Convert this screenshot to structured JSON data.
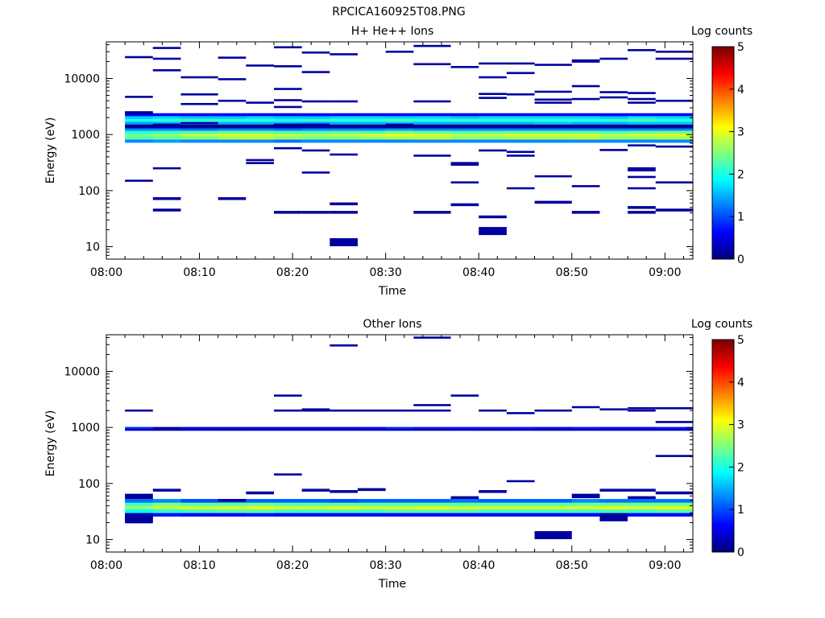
{
  "figure_title": "RPCICA160925T08.PNG",
  "chart_data": [
    {
      "type": "heatmap",
      "title": "H+ He++ Ions",
      "xlabel": "Time",
      "ylabel": "Energy (eV)",
      "x_ticks": [
        "08:00",
        "08:10",
        "08:20",
        "08:30",
        "08:40",
        "08:50",
        "09:00"
      ],
      "xlim": [
        "08:00",
        "09:03"
      ],
      "y_scale": "log",
      "y_ticks": [
        10,
        100,
        1000,
        10000
      ],
      "y_tick_labels": [
        "10",
        "100",
        "1000",
        "10000"
      ],
      "ylim": [
        6,
        45000
      ],
      "colorbar": {
        "title": "Log counts",
        "range": [
          0,
          5
        ],
        "ticks": [
          "0",
          "1",
          "2",
          "3",
          "4",
          "5"
        ],
        "colormap": "jet"
      },
      "time_bins": [
        "08:02",
        "08:05",
        "08:08",
        "08:12",
        "08:15",
        "08:18",
        "08:21",
        "08:24",
        "08:27",
        "08:30",
        "08:33",
        "08:37",
        "08:40",
        "08:43",
        "08:46",
        "08:50",
        "08:53",
        "08:56",
        "08:59",
        "09:03"
      ],
      "band_cells": [
        {
          "e_lo": 720,
          "e_hi": 820,
          "values": [
            1.3,
            1.4,
            1.3,
            1.3,
            1.3,
            1.2,
            1.3,
            1.3,
            1.3,
            1.3,
            1.3,
            1.3,
            1.3,
            1.3,
            1.3,
            1.3,
            1.3,
            1.3,
            1.3
          ]
        },
        {
          "e_lo": 820,
          "e_hi": 930,
          "values": [
            2.3,
            2.4,
            2.5,
            2.7,
            2.8,
            2.6,
            2.5,
            2.5,
            2.6,
            2.7,
            2.8,
            2.6,
            2.6,
            2.7,
            2.7,
            2.8,
            2.6,
            2.6,
            2.7
          ]
        },
        {
          "e_lo": 930,
          "e_hi": 1050,
          "values": [
            2.5,
            2.6,
            2.8,
            2.9,
            2.9,
            2.8,
            2.7,
            2.8,
            2.9,
            3.0,
            2.9,
            2.8,
            2.8,
            2.9,
            2.9,
            2.9,
            2.8,
            2.9,
            2.9
          ]
        },
        {
          "e_lo": 1050,
          "e_hi": 1180,
          "values": [
            2.0,
            2.1,
            2.2,
            2.3,
            2.3,
            2.2,
            2.2,
            2.3,
            2.2,
            2.4,
            2.3,
            2.2,
            2.3,
            2.3,
            2.3,
            2.3,
            2.2,
            2.3,
            2.4
          ]
        },
        {
          "e_lo": 1180,
          "e_hi": 1300,
          "values": [
            1.3,
            1.3,
            1.2,
            1.3,
            1.3,
            1.2,
            1.3,
            1.3,
            1.3,
            1.4,
            1.3,
            1.3,
            1.3,
            1.3,
            1.3,
            1.3,
            1.3,
            1.3,
            1.3
          ]
        },
        {
          "e_lo": 1300,
          "e_hi": 1520,
          "values": [
            0.1,
            0.2,
            0.1,
            0.1,
            0.1,
            0.1,
            0.2,
            0.1,
            0.1,
            0.1,
            0.1,
            0.1,
            0.1,
            0.1,
            0.1,
            0.1,
            0.1,
            0.1,
            0.1
          ]
        },
        {
          "e_lo": 1520,
          "e_hi": 1700,
          "values": [
            1.4,
            1.5,
            1.4,
            1.5,
            1.5,
            1.5,
            1.4,
            1.5,
            1.5,
            1.6,
            1.5,
            1.5,
            1.5,
            1.5,
            1.6,
            1.5,
            1.5,
            1.6,
            1.6
          ]
        },
        {
          "e_lo": 1700,
          "e_hi": 1920,
          "values": [
            2.0,
            2.1,
            2.1,
            2.1,
            2.1,
            2.0,
            2.1,
            2.1,
            2.1,
            2.2,
            2.1,
            2.1,
            2.1,
            2.1,
            2.1,
            2.1,
            2.1,
            2.2,
            2.1
          ]
        },
        {
          "e_lo": 1920,
          "e_hi": 2150,
          "values": [
            1.6,
            1.7,
            1.6,
            1.6,
            1.7,
            1.6,
            1.6,
            1.7,
            1.7,
            1.7,
            1.7,
            1.6,
            1.7,
            1.7,
            1.7,
            1.7,
            1.6,
            1.8,
            1.7
          ]
        },
        {
          "e_lo": 2150,
          "e_hi": 2400,
          "values": [
            0.6,
            0.6,
            0.5,
            0.6,
            0.6,
            0.5,
            0.6,
            0.6,
            0.6,
            0.6,
            0.6,
            0.5,
            0.6,
            0.6,
            0.6,
            0.6,
            0.6,
            0.6,
            0.6
          ]
        }
      ],
      "scatter_cells": [
        {
          "t": 0,
          "e": 24000
        },
        {
          "t": 0,
          "e": 4700
        },
        {
          "t": 0,
          "e": 2500
        },
        {
          "t": 0,
          "e": 2400
        },
        {
          "t": 0,
          "e": 150
        },
        {
          "t": 1,
          "e": 35000
        },
        {
          "t": 1,
          "e": 22500
        },
        {
          "t": 1,
          "e": 14000
        },
        {
          "t": 1,
          "e": 1500
        },
        {
          "t": 1,
          "e": 250
        },
        {
          "t": 1,
          "e": 72
        },
        {
          "t": 1,
          "e": 45
        },
        {
          "t": 2,
          "e": 10500
        },
        {
          "t": 2,
          "e": 5200
        },
        {
          "t": 2,
          "e": 3500
        },
        {
          "t": 2,
          "e": 1600
        },
        {
          "t": 3,
          "e": 23500
        },
        {
          "t": 3,
          "e": 9700
        },
        {
          "t": 3,
          "e": 4000
        },
        {
          "t": 3,
          "e": 72
        },
        {
          "t": 4,
          "e": 17000
        },
        {
          "t": 4,
          "e": 3700
        },
        {
          "t": 4,
          "e": 350
        },
        {
          "t": 4,
          "e": 310
        },
        {
          "t": 5,
          "e": 36000
        },
        {
          "t": 5,
          "e": 16500
        },
        {
          "t": 5,
          "e": 6500
        },
        {
          "t": 5,
          "e": 4100
        },
        {
          "t": 5,
          "e": 3100
        },
        {
          "t": 5,
          "e": 1500
        },
        {
          "t": 5,
          "e": 570
        },
        {
          "t": 5,
          "e": 41
        },
        {
          "t": 6,
          "e": 29000
        },
        {
          "t": 6,
          "e": 13000
        },
        {
          "t": 6,
          "e": 3900
        },
        {
          "t": 6,
          "e": 1500
        },
        {
          "t": 6,
          "e": 520
        },
        {
          "t": 6,
          "e": 210
        },
        {
          "t": 6,
          "e": 41
        },
        {
          "t": 7,
          "e": 27000
        },
        {
          "t": 7,
          "e": 3900
        },
        {
          "t": 7,
          "e": 1400
        },
        {
          "t": 7,
          "e": 440
        },
        {
          "t": 7,
          "e": 58
        },
        {
          "t": 7,
          "e": 41
        },
        {
          "t": 7,
          "e": 12
        },
        {
          "t": 9,
          "e": 30000
        },
        {
          "t": 9,
          "e": 1500
        },
        {
          "t": 10,
          "e": 38000
        },
        {
          "t": 10,
          "e": 18000
        },
        {
          "t": 10,
          "e": 3900
        },
        {
          "t": 10,
          "e": 1400
        },
        {
          "t": 10,
          "e": 420
        },
        {
          "t": 10,
          "e": 41
        },
        {
          "t": 11,
          "e": 16000
        },
        {
          "t": 11,
          "e": 310
        },
        {
          "t": 11,
          "e": 290
        },
        {
          "t": 11,
          "e": 140
        },
        {
          "t": 11,
          "e": 56
        },
        {
          "t": 12,
          "e": 18500
        },
        {
          "t": 12,
          "e": 10500
        },
        {
          "t": 12,
          "e": 5300
        },
        {
          "t": 12,
          "e": 4500
        },
        {
          "t": 12,
          "e": 520
        },
        {
          "t": 12,
          "e": 34
        },
        {
          "t": 12,
          "e": 19
        },
        {
          "t": 13,
          "e": 18500
        },
        {
          "t": 13,
          "e": 12500
        },
        {
          "t": 13,
          "e": 5200
        },
        {
          "t": 13,
          "e": 490
        },
        {
          "t": 13,
          "e": 420
        },
        {
          "t": 13,
          "e": 110
        },
        {
          "t": 14,
          "e": 17500
        },
        {
          "t": 14,
          "e": 5800
        },
        {
          "t": 14,
          "e": 4200
        },
        {
          "t": 14,
          "e": 3700
        },
        {
          "t": 14,
          "e": 180
        },
        {
          "t": 14,
          "e": 62
        },
        {
          "t": 15,
          "e": 21000
        },
        {
          "t": 15,
          "e": 20000
        },
        {
          "t": 15,
          "e": 7300
        },
        {
          "t": 15,
          "e": 4300
        },
        {
          "t": 15,
          "e": 1400
        },
        {
          "t": 15,
          "e": 120
        },
        {
          "t": 15,
          "e": 41
        },
        {
          "t": 16,
          "e": 22500
        },
        {
          "t": 16,
          "e": 5700
        },
        {
          "t": 16,
          "e": 4600
        },
        {
          "t": 16,
          "e": 530
        },
        {
          "t": 17,
          "e": 32000
        },
        {
          "t": 17,
          "e": 5500
        },
        {
          "t": 17,
          "e": 4300
        },
        {
          "t": 17,
          "e": 3700
        },
        {
          "t": 17,
          "e": 640
        },
        {
          "t": 17,
          "e": 250
        },
        {
          "t": 17,
          "e": 230
        },
        {
          "t": 17,
          "e": 175
        },
        {
          "t": 17,
          "e": 110
        },
        {
          "t": 17,
          "e": 50
        },
        {
          "t": 17,
          "e": 41
        },
        {
          "t": 18,
          "e": 30000
        },
        {
          "t": 18,
          "e": 22500
        },
        {
          "t": 18,
          "e": 4000
        },
        {
          "t": 18,
          "e": 610
        },
        {
          "t": 18,
          "e": 140
        },
        {
          "t": 18,
          "e": 45
        }
      ]
    },
    {
      "type": "heatmap",
      "title": "Other Ions",
      "xlabel": "Time",
      "ylabel": "Energy (eV)",
      "x_ticks": [
        "08:00",
        "08:10",
        "08:20",
        "08:30",
        "08:40",
        "08:50",
        "09:00"
      ],
      "xlim": [
        "08:00",
        "09:03"
      ],
      "y_scale": "log",
      "y_ticks": [
        10,
        100,
        1000,
        10000
      ],
      "y_tick_labels": [
        "10",
        "100",
        "1000",
        "10000"
      ],
      "ylim": [
        6,
        45000
      ],
      "colorbar": {
        "title": "Log counts",
        "range": [
          0,
          5
        ],
        "ticks": [
          "0",
          "1",
          "2",
          "3",
          "4",
          "5"
        ],
        "colormap": "jet"
      },
      "time_bins": [
        "08:02",
        "08:05",
        "08:08",
        "08:12",
        "08:15",
        "08:18",
        "08:21",
        "08:24",
        "08:27",
        "08:30",
        "08:33",
        "08:37",
        "08:40",
        "08:43",
        "08:46",
        "08:50",
        "08:53",
        "08:56",
        "08:59",
        "09:03"
      ],
      "band_cells": [
        {
          "e_lo": 26,
          "e_hi": 30,
          "values": [
            0.7,
            0.7,
            0.6,
            0.6,
            0.7,
            0.6,
            0.6,
            0.6,
            0.6,
            0.6,
            0.6,
            0.6,
            0.6,
            0.6,
            0.6,
            0.6,
            0.6,
            0.6,
            0.6
          ]
        },
        {
          "e_lo": 30,
          "e_hi": 35,
          "values": [
            1.9,
            2.1,
            2.2,
            2.3,
            2.3,
            2.2,
            2.2,
            2.2,
            2.2,
            2.3,
            2.3,
            2.3,
            2.2,
            2.2,
            2.2,
            2.2,
            2.2,
            2.2,
            2.3
          ]
        },
        {
          "e_lo": 35,
          "e_hi": 40,
          "values": [
            2.6,
            2.8,
            2.9,
            2.9,
            3.0,
            2.9,
            2.9,
            3.0,
            2.9,
            2.9,
            3.0,
            2.9,
            2.9,
            2.9,
            2.9,
            2.9,
            3.0,
            2.9,
            3.0
          ]
        },
        {
          "e_lo": 40,
          "e_hi": 46,
          "values": [
            2.2,
            2.5,
            2.3,
            2.3,
            2.4,
            2.3,
            2.3,
            2.3,
            2.3,
            2.3,
            2.3,
            2.3,
            2.3,
            2.3,
            2.3,
            2.4,
            2.4,
            2.4,
            2.4
          ]
        },
        {
          "e_lo": 46,
          "e_hi": 53,
          "values": [
            1.2,
            1.3,
            1.0,
            1.1,
            1.1,
            1.1,
            1.1,
            1.0,
            1.1,
            1.1,
            1.1,
            1.2,
            1.1,
            1.1,
            1.1,
            1.3,
            1.2,
            1.2,
            1.2
          ]
        },
        {
          "e_lo": 880,
          "e_hi": 950,
          "values": [
            0.3,
            0.2,
            0.3,
            0.2,
            0.3,
            0.3,
            0.3,
            0.3,
            0.3,
            0.3,
            0.2,
            0.3,
            0.2,
            0.3,
            0.2,
            0.3,
            0.3,
            0.3,
            0.3
          ]
        },
        {
          "e_lo": 950,
          "e_hi": 1020,
          "values": [
            0.8,
            0.2,
            0.5,
            0.5,
            0.5,
            0.5,
            0.5,
            0.5,
            0.6,
            0.8,
            0.7,
            0.7,
            0.7,
            0.7,
            0.6,
            0.7,
            0.6,
            0.6,
            0.7
          ]
        }
      ],
      "scatter_cells": [
        {
          "t": 0,
          "e": 2000
        },
        {
          "t": 0,
          "e": 62
        },
        {
          "t": 0,
          "e": 56
        },
        {
          "t": 0,
          "e": 25
        },
        {
          "t": 0,
          "e": 23
        },
        {
          "t": 1,
          "e": 76
        },
        {
          "t": 3,
          "e": 50
        },
        {
          "t": 4,
          "e": 68
        },
        {
          "t": 5,
          "e": 3700
        },
        {
          "t": 5,
          "e": 2000
        },
        {
          "t": 5,
          "e": 145
        },
        {
          "t": 6,
          "e": 2100
        },
        {
          "t": 6,
          "e": 2000
        },
        {
          "t": 6,
          "e": 76
        },
        {
          "t": 7,
          "e": 29000
        },
        {
          "t": 7,
          "e": 2000
        },
        {
          "t": 7,
          "e": 72
        },
        {
          "t": 8,
          "e": 2000
        },
        {
          "t": 8,
          "e": 78
        },
        {
          "t": 9,
          "e": 2000
        },
        {
          "t": 10,
          "e": 40000
        },
        {
          "t": 10,
          "e": 2500
        },
        {
          "t": 10,
          "e": 2000
        },
        {
          "t": 11,
          "e": 3700
        },
        {
          "t": 11,
          "e": 56
        },
        {
          "t": 12,
          "e": 2000
        },
        {
          "t": 12,
          "e": 72
        },
        {
          "t": 13,
          "e": 1800
        },
        {
          "t": 13,
          "e": 110
        },
        {
          "t": 14,
          "e": 2000
        },
        {
          "t": 14,
          "e": 12
        },
        {
          "t": 15,
          "e": 2300
        },
        {
          "t": 15,
          "e": 62
        },
        {
          "t": 15,
          "e": 58
        },
        {
          "t": 16,
          "e": 2100
        },
        {
          "t": 16,
          "e": 76
        },
        {
          "t": 16,
          "e": 25
        },
        {
          "t": 17,
          "e": 2200
        },
        {
          "t": 17,
          "e": 2000
        },
        {
          "t": 17,
          "e": 76
        },
        {
          "t": 17,
          "e": 56
        },
        {
          "t": 18,
          "e": 2200
        },
        {
          "t": 18,
          "e": 1250
        },
        {
          "t": 18,
          "e": 310
        },
        {
          "t": 18,
          "e": 68
        }
      ]
    }
  ]
}
